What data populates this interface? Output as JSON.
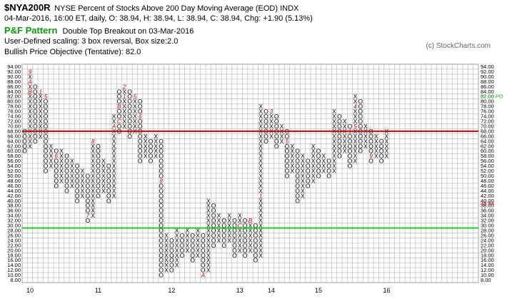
{
  "header": {
    "symbol": "$NYA200R",
    "description": "NYSE Percent of Stocks Above 200 Day Moving Average (EOD)  INDX",
    "quote": "04-Mar-2016, 16:00 ET, daily, O: 38.94, H: 38.94, L: 38.94, C: 38.94, Chg: +1.90 (5.13%)",
    "pattern_title": "P&F Pattern",
    "pattern_desc": "Double Top Breakout on 03-Mar-2016",
    "scaling": "User-Defined scaling: 3 box reversal, Box size:2.0",
    "objective": "Bullish Price Objective (Tentative): 82.0",
    "credit": "(c) StockCharts.com"
  },
  "colors": {
    "grid": "#b4b4b4",
    "resistance_line": "#cc0000",
    "support_line": "#22cc22",
    "month_marker": "#cc0000",
    "x_mark": "#000000",
    "o_mark": "#000000",
    "current_box": "#22aa22",
    "objective_label": "#22aa22",
    "price_label_red": "#cc0000"
  },
  "chart_data": {
    "type": "point-and-figure",
    "box_size": 2.0,
    "reversal": 3,
    "y_range": [
      8,
      94
    ],
    "y_ticks": [
      "94.00",
      "92.00",
      "90.00",
      "88.00",
      "86.00",
      "84.00",
      "82.00",
      "80.00",
      "78.00",
      "76.00",
      "74.00",
      "72.00",
      "70.00",
      "68.00",
      "66.00",
      "64.00",
      "62.00",
      "60.00",
      "58.00",
      "56.00",
      "54.00",
      "52.00",
      "50.00",
      "48.00",
      "46.00",
      "44.00",
      "42.00",
      "40.00",
      "38.00",
      "36.00",
      "34.00",
      "32.00",
      "30.00",
      "28.00",
      "26.00",
      "24.00",
      "22.00",
      "20.00",
      "18.00",
      "16.00",
      "14.00",
      "12.00",
      "10.00",
      "8.00"
    ],
    "x_labels": [
      {
        "label": "10",
        "column": 1
      },
      {
        "label": "11",
        "column": 14
      },
      {
        "label": "12",
        "column": 28
      },
      {
        "label": "13",
        "column": 41
      },
      {
        "label": "14",
        "column": 47
      },
      {
        "label": "15",
        "column": 56
      },
      {
        "label": "16",
        "column": 69
      }
    ],
    "resistance_level": 68,
    "support_level": 29,
    "current_price_label": "38.94",
    "objective_label": "82.00 PO",
    "columns": [
      {
        "type": "O",
        "low": 60,
        "high": 68
      },
      {
        "type": "X",
        "low": 62,
        "high": 92,
        "markers": [
          {
            "value": 92,
            "label": "9"
          },
          {
            "value": 88,
            "label": "A"
          },
          {
            "value": 84,
            "label": "B"
          }
        ]
      },
      {
        "type": "O",
        "low": 64,
        "high": 86
      },
      {
        "type": "X",
        "low": 66,
        "high": 84,
        "markers": [
          {
            "value": 84,
            "label": "1"
          }
        ]
      },
      {
        "type": "O",
        "low": 52,
        "high": 82,
        "markers": [
          {
            "value": 82,
            "label": "5"
          }
        ]
      },
      {
        "type": "X",
        "low": 54,
        "high": 62
      },
      {
        "type": "O",
        "low": 46,
        "high": 60,
        "markers": [
          {
            "value": 58,
            "label": "6"
          }
        ]
      },
      {
        "type": "X",
        "low": 48,
        "high": 60
      },
      {
        "type": "O",
        "low": 44,
        "high": 58
      },
      {
        "type": "X",
        "low": 46,
        "high": 56
      },
      {
        "type": "O",
        "low": 40,
        "high": 54
      },
      {
        "type": "X",
        "low": 42,
        "high": 52
      },
      {
        "type": "O",
        "low": 32,
        "high": 50,
        "markers": [
          {
            "value": 34,
            "label": "7"
          }
        ]
      },
      {
        "type": "X",
        "low": 34,
        "high": 64,
        "markers": [
          {
            "value": 64,
            "label": "8"
          }
        ]
      },
      {
        "type": "O",
        "low": 42,
        "high": 62
      },
      {
        "type": "X",
        "low": 44,
        "high": 56
      },
      {
        "type": "O",
        "low": 40,
        "high": 54
      },
      {
        "type": "X",
        "low": 42,
        "high": 74,
        "markers": [
          {
            "value": 70,
            "label": "A"
          }
        ]
      },
      {
        "type": "O",
        "low": 68,
        "high": 84,
        "markers": [
          {
            "value": 78,
            "label": "B"
          },
          {
            "value": 72,
            "label": "C"
          }
        ]
      },
      {
        "type": "X",
        "low": 70,
        "high": 86,
        "markers": [
          {
            "value": 86,
            "label": "2"
          },
          {
            "value": 82,
            "label": "1"
          }
        ]
      },
      {
        "type": "O",
        "low": 66,
        "high": 84
      },
      {
        "type": "X",
        "low": 68,
        "high": 82,
        "markers": [
          {
            "value": 82,
            "label": "5"
          }
        ]
      },
      {
        "type": "O",
        "low": 56,
        "high": 80,
        "markers": [
          {
            "value": 74,
            "label": "6"
          }
        ]
      },
      {
        "type": "X",
        "low": 58,
        "high": 66
      },
      {
        "type": "O",
        "low": 56,
        "high": 64
      },
      {
        "type": "X",
        "low": 58,
        "high": 66
      },
      {
        "type": "O",
        "low": 10,
        "high": 64,
        "markers": [
          {
            "value": 48,
            "label": "8"
          }
        ]
      },
      {
        "type": "X",
        "low": 12,
        "high": 26
      },
      {
        "type": "O",
        "low": 12,
        "high": 24
      },
      {
        "type": "X",
        "low": 14,
        "high": 28
      },
      {
        "type": "O",
        "low": 18,
        "high": 26
      },
      {
        "type": "X",
        "low": 20,
        "high": 28
      },
      {
        "type": "O",
        "low": 16,
        "high": 26
      },
      {
        "type": "X",
        "low": 18,
        "high": 28
      },
      {
        "type": "O",
        "low": 10,
        "high": 26,
        "markers": [
          {
            "value": 10,
            "label": "A"
          }
        ]
      },
      {
        "type": "X",
        "low": 12,
        "high": 40
      },
      {
        "type": "O",
        "low": 22,
        "high": 38
      },
      {
        "type": "X",
        "low": 24,
        "high": 34
      },
      {
        "type": "O",
        "low": 22,
        "high": 32
      },
      {
        "type": "X",
        "low": 24,
        "high": 34
      },
      {
        "type": "O",
        "low": 18,
        "high": 32
      },
      {
        "type": "X",
        "low": 20,
        "high": 34,
        "markers": [
          {
            "value": 30,
            "label": "C"
          }
        ]
      },
      {
        "type": "O",
        "low": 18,
        "high": 32
      },
      {
        "type": "X",
        "low": 20,
        "high": 32,
        "markers": [
          {
            "value": 32,
            "label": "B"
          }
        ]
      },
      {
        "type": "O",
        "low": 16,
        "high": 30
      },
      {
        "type": "X",
        "low": 18,
        "high": 78,
        "markers": [
          {
            "value": 42,
            "label": "1"
          }
        ]
      },
      {
        "type": "O",
        "low": 64,
        "high": 76
      },
      {
        "type": "X",
        "low": 66,
        "high": 76,
        "markers": [
          {
            "value": 76,
            "label": "3"
          }
        ]
      },
      {
        "type": "O",
        "low": 62,
        "high": 74
      },
      {
        "type": "X",
        "low": 64,
        "high": 70
      },
      {
        "type": "O",
        "low": 50,
        "high": 68,
        "markers": [
          {
            "value": 64,
            "label": "5"
          }
        ]
      },
      {
        "type": "X",
        "low": 52,
        "high": 62
      },
      {
        "type": "O",
        "low": 40,
        "high": 60
      },
      {
        "type": "X",
        "low": 42,
        "high": 58
      },
      {
        "type": "O",
        "low": 46,
        "high": 56
      },
      {
        "type": "X",
        "low": 48,
        "high": 62
      },
      {
        "type": "O",
        "low": 50,
        "high": 60
      },
      {
        "type": "X",
        "low": 52,
        "high": 58
      },
      {
        "type": "O",
        "low": 50,
        "high": 56
      },
      {
        "type": "X",
        "low": 52,
        "high": 76
      },
      {
        "type": "O",
        "low": 58,
        "high": 74
      },
      {
        "type": "X",
        "low": 60,
        "high": 72
      },
      {
        "type": "O",
        "low": 54,
        "high": 70,
        "markers": [
          {
            "value": 68,
            "label": "1"
          }
        ]
      },
      {
        "type": "X",
        "low": 56,
        "high": 82,
        "markers": [
          {
            "value": 78,
            "label": "4"
          },
          {
            "value": 70,
            "label": "5"
          }
        ]
      },
      {
        "type": "O",
        "low": 60,
        "high": 80
      },
      {
        "type": "X",
        "low": 62,
        "high": 70
      },
      {
        "type": "O",
        "low": 56,
        "high": 68,
        "markers": [
          {
            "value": 58,
            "label": "9"
          }
        ]
      },
      {
        "type": "X",
        "low": 58,
        "high": 66
      },
      {
        "type": "O",
        "low": 56,
        "high": 64
      },
      {
        "type": "X",
        "low": 58,
        "high": 68
      }
    ]
  }
}
